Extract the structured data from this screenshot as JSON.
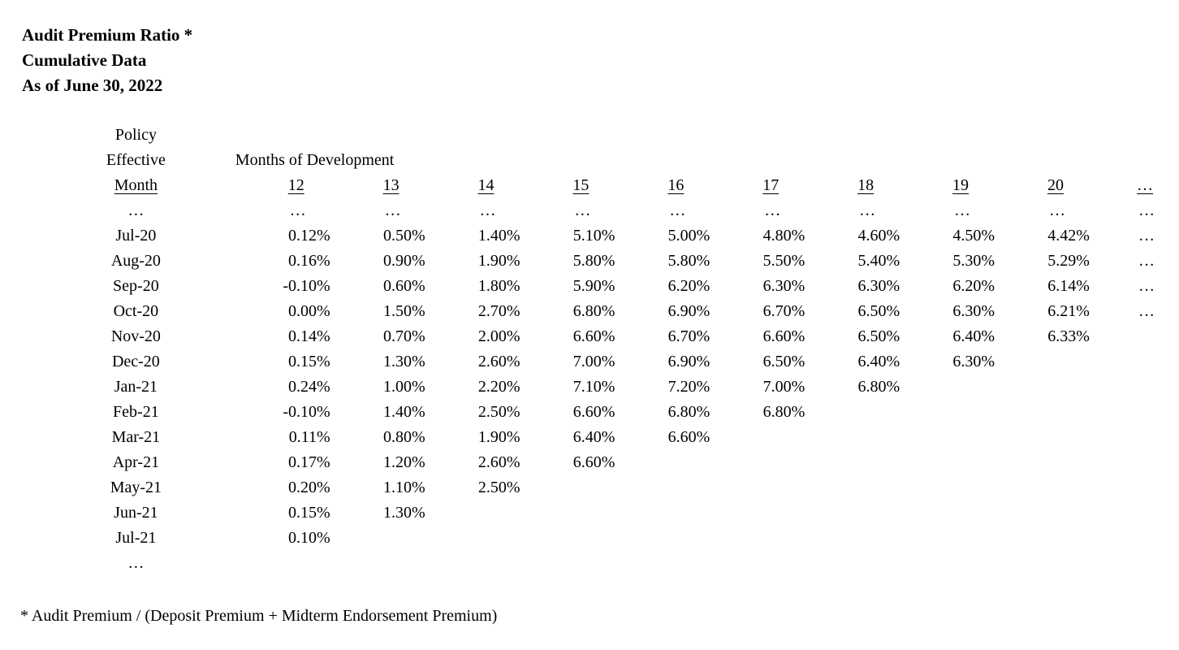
{
  "title": {
    "line1": "Audit Premium Ratio *",
    "line2": "Cumulative Data",
    "line3": "As of June 30, 2022"
  },
  "table": {
    "row_header": {
      "line1": "Policy",
      "line2": "Effective",
      "line3": "Month"
    },
    "dev_header_label": "Months of Development",
    "columns": [
      "12",
      "13",
      "14",
      "15",
      "16",
      "17",
      "18",
      "19",
      "20",
      "…"
    ],
    "rows": [
      {
        "month": "…",
        "values": [
          "…",
          "…",
          "…",
          "…",
          "…",
          "…",
          "…",
          "…",
          "…",
          "…"
        ]
      },
      {
        "month": "Jul-20",
        "values": [
          "0.12%",
          "0.50%",
          "1.40%",
          "5.10%",
          "5.00%",
          "4.80%",
          "4.60%",
          "4.50%",
          "4.42%",
          "…"
        ]
      },
      {
        "month": "Aug-20",
        "values": [
          "0.16%",
          "0.90%",
          "1.90%",
          "5.80%",
          "5.80%",
          "5.50%",
          "5.40%",
          "5.30%",
          "5.29%",
          "…"
        ]
      },
      {
        "month": "Sep-20",
        "values": [
          "-0.10%",
          "0.60%",
          "1.80%",
          "5.90%",
          "6.20%",
          "6.30%",
          "6.30%",
          "6.20%",
          "6.14%",
          "…"
        ]
      },
      {
        "month": "Oct-20",
        "values": [
          "0.00%",
          "1.50%",
          "2.70%",
          "6.80%",
          "6.90%",
          "6.70%",
          "6.50%",
          "6.30%",
          "6.21%",
          "…"
        ]
      },
      {
        "month": "Nov-20",
        "values": [
          "0.14%",
          "0.70%",
          "2.00%",
          "6.60%",
          "6.70%",
          "6.60%",
          "6.50%",
          "6.40%",
          "6.33%",
          ""
        ]
      },
      {
        "month": "Dec-20",
        "values": [
          "0.15%",
          "1.30%",
          "2.60%",
          "7.00%",
          "6.90%",
          "6.50%",
          "6.40%",
          "6.30%",
          "",
          ""
        ]
      },
      {
        "month": "Jan-21",
        "values": [
          "0.24%",
          "1.00%",
          "2.20%",
          "7.10%",
          "7.20%",
          "7.00%",
          "6.80%",
          "",
          "",
          ""
        ]
      },
      {
        "month": "Feb-21",
        "values": [
          "-0.10%",
          "1.40%",
          "2.50%",
          "6.60%",
          "6.80%",
          "6.80%",
          "",
          "",
          "",
          ""
        ]
      },
      {
        "month": "Mar-21",
        "values": [
          "0.11%",
          "0.80%",
          "1.90%",
          "6.40%",
          "6.60%",
          "",
          "",
          "",
          "",
          ""
        ]
      },
      {
        "month": "Apr-21",
        "values": [
          "0.17%",
          "1.20%",
          "2.60%",
          "6.60%",
          "",
          "",
          "",
          "",
          "",
          ""
        ]
      },
      {
        "month": "May-21",
        "values": [
          "0.20%",
          "1.10%",
          "2.50%",
          "",
          "",
          "",
          "",
          "",
          "",
          ""
        ]
      },
      {
        "month": "Jun-21",
        "values": [
          "0.15%",
          "1.30%",
          "",
          "",
          "",
          "",
          "",
          "",
          "",
          ""
        ]
      },
      {
        "month": "Jul-21",
        "values": [
          "0.10%",
          "",
          "",
          "",
          "",
          "",
          "",
          "",
          "",
          ""
        ]
      },
      {
        "month": "…",
        "values": [
          "",
          "",
          "",
          "",
          "",
          "",
          "",
          "",
          "",
          ""
        ]
      }
    ]
  },
  "footnote": "* Audit Premium / (Deposit Premium + Midterm Endorsement Premium)"
}
